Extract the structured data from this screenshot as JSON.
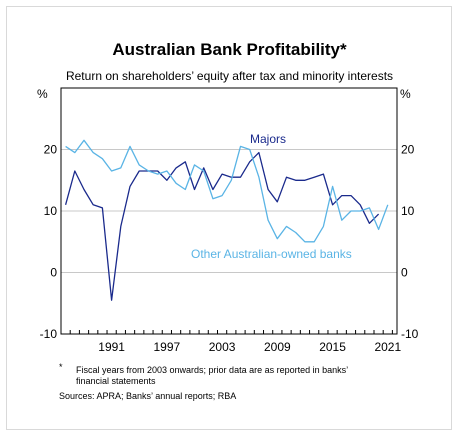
{
  "chart_data": {
    "type": "line",
    "title": "Australian Bank Profitability*",
    "subtitle": "Return on shareholders’ equity after tax and minority interests",
    "unit_left": "%",
    "unit_right": "%",
    "ylim": [
      -10,
      30
    ],
    "yticks": [
      -10,
      0,
      10,
      20
    ],
    "xlim": [
      1985.5,
      2022
    ],
    "xticks": [
      1991,
      1997,
      2003,
      2009,
      2015,
      2021
    ],
    "grid": true,
    "series": [
      {
        "name": "Majors",
        "color": "#1a2a8c",
        "x": [
          1986,
          1987,
          1988,
          1989,
          1990,
          1991,
          1992,
          1993,
          1994,
          1995,
          1996,
          1997,
          1998,
          1999,
          2000,
          2001,
          2002,
          2003,
          2004,
          2005,
          2006,
          2007,
          2008,
          2009,
          2010,
          2011,
          2012,
          2013,
          2014,
          2015,
          2016,
          2017,
          2018,
          2019,
          2020,
          2021
        ],
        "values": [
          11,
          16.5,
          13.5,
          11,
          10.5,
          -4.5,
          7.5,
          14,
          16.5,
          16.5,
          16.5,
          15,
          17,
          18,
          13.5,
          17,
          13.5,
          16,
          15.5,
          15.5,
          18,
          19.5,
          13.5,
          11.5,
          15.5,
          15,
          15,
          15.5,
          16,
          11,
          12.5,
          12.5,
          11,
          8,
          9.5,
          null
        ]
      },
      {
        "name": "Other Australian-owned banks",
        "color": "#5ab4e5",
        "x": [
          1986,
          1987,
          1988,
          1989,
          1990,
          1991,
          1992,
          1993,
          1994,
          1995,
          1996,
          1997,
          1998,
          1999,
          2000,
          2001,
          2002,
          2003,
          2004,
          2005,
          2006,
          2007,
          2008,
          2009,
          2010,
          2011,
          2012,
          2013,
          2014,
          2015,
          2016,
          2017,
          2018,
          2019,
          2020,
          2021
        ],
        "values": [
          20.5,
          19.5,
          21.5,
          19.5,
          18.5,
          16.5,
          17,
          20.5,
          17.5,
          16.5,
          16,
          16.5,
          14.5,
          13.5,
          17.5,
          16.5,
          12,
          12.5,
          15,
          20.5,
          20,
          15.5,
          8.5,
          5.5,
          7.5,
          6.5,
          5,
          5,
          7.5,
          14,
          8.5,
          10,
          10,
          10.5,
          7,
          11
        ]
      }
    ],
    "annotations": [
      {
        "text": "Majors",
        "series": "Majors"
      },
      {
        "text": "Other Australian-owned banks",
        "series": "Other Australian-owned banks"
      }
    ],
    "footnote_marker": "*",
    "footnote": [
      "Fiscal years from 2003 onwards; prior data are as reported in banks’",
      "financial statements"
    ],
    "sources": "Sources: APRA; Banks’ annual reports; RBA"
  }
}
